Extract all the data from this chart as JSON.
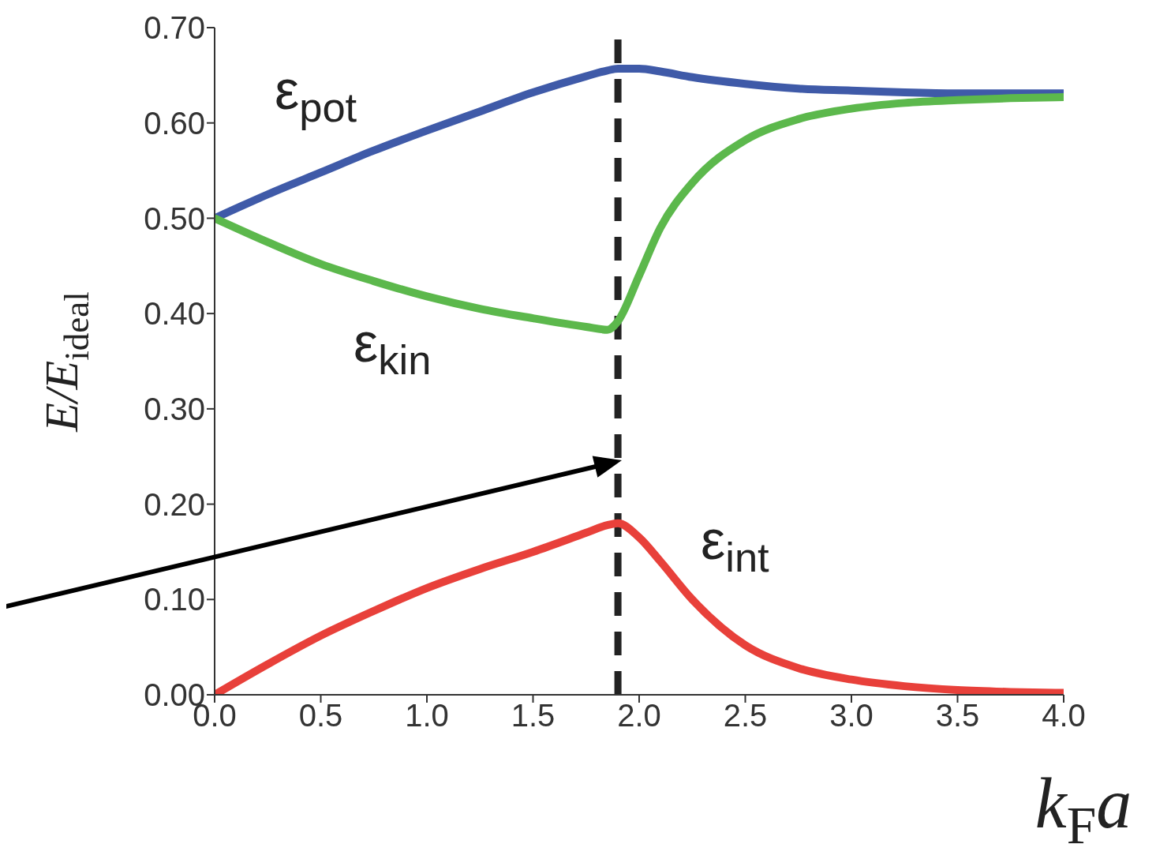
{
  "chart_data": {
    "type": "line",
    "xlabel": "k$_{F}$a",
    "ylabel": "E/E$_{ideal}$",
    "x": [
      0,
      0.25,
      0.5,
      0.75,
      1.0,
      1.25,
      1.5,
      1.75,
      1.85,
      1.9,
      2.0,
      2.1,
      2.25,
      2.5,
      2.75,
      3.0,
      3.25,
      3.5,
      3.75,
      4.0
    ],
    "series": [
      {
        "name": "ε$_{pot}$",
        "color": "#3f5aa8",
        "values": [
          0.5,
          0.525,
          0.548,
          0.571,
          0.592,
          0.612,
          0.632,
          0.649,
          0.655,
          0.657,
          0.657,
          0.654,
          0.648,
          0.641,
          0.636,
          0.634,
          0.632,
          0.631,
          0.631,
          0.631
        ]
      },
      {
        "name": "ε$_{kin}$",
        "color": "#5cb84c",
        "values": [
          0.5,
          0.475,
          0.452,
          0.434,
          0.418,
          0.405,
          0.395,
          0.386,
          0.383,
          0.392,
          0.44,
          0.49,
          0.537,
          0.582,
          0.604,
          0.615,
          0.621,
          0.624,
          0.626,
          0.627
        ]
      },
      {
        "name": "ε$_{int}$",
        "color": "#e8403a",
        "values": [
          0,
          0.032,
          0.062,
          0.088,
          0.112,
          0.132,
          0.15,
          0.17,
          0.178,
          0.18,
          0.165,
          0.14,
          0.1,
          0.052,
          0.028,
          0.016,
          0.009,
          0.005,
          0.003,
          0.002
        ]
      }
    ],
    "xlim": [
      0,
      4
    ],
    "xticks": [
      {
        "value": 0,
        "label": "0.0"
      },
      {
        "value": 0.5,
        "label": "0.5"
      },
      {
        "value": 1,
        "label": "1.0"
      },
      {
        "value": 1.5,
        "label": "1.5"
      },
      {
        "value": 2,
        "label": "2.0"
      },
      {
        "value": 2.5,
        "label": "2.5"
      },
      {
        "value": 3,
        "label": "3.0"
      },
      {
        "value": 3.5,
        "label": "3.5"
      },
      {
        "value": 4,
        "label": "4.0"
      }
    ],
    "ylim": [
      0,
      0.7
    ],
    "yticks": [
      {
        "value": 0,
        "label": "0.00"
      },
      {
        "value": 0.1,
        "label": "0.10"
      },
      {
        "value": 0.2,
        "label": "0.20"
      },
      {
        "value": 0.3,
        "label": "0.30"
      },
      {
        "value": 0.4,
        "label": "0.40"
      },
      {
        "value": 0.5,
        "label": "0.50"
      },
      {
        "value": 0.6,
        "label": "0.60"
      },
      {
        "value": 0.7,
        "label": "0.70"
      }
    ],
    "ref_lines": [
      {
        "axis": "x",
        "value": 1.9,
        "color": "#222222",
        "line_style": "dashed"
      }
    ],
    "grid": false,
    "legend": false
  }
}
